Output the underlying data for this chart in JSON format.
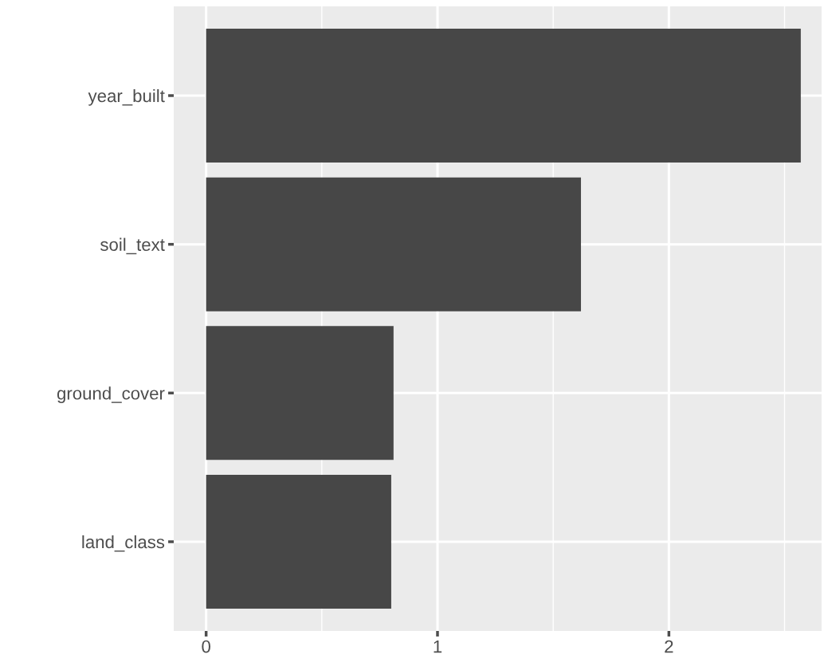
{
  "chart_data": {
    "type": "bar",
    "orientation": "horizontal",
    "categories": [
      "year_built",
      "soil_text",
      "ground_cover",
      "land_class"
    ],
    "values": [
      2.57,
      1.62,
      0.81,
      0.8
    ],
    "color": "#474747",
    "xlim": [
      -0.14,
      2.66
    ],
    "xticks": [
      0,
      1,
      2
    ],
    "grid": true
  }
}
